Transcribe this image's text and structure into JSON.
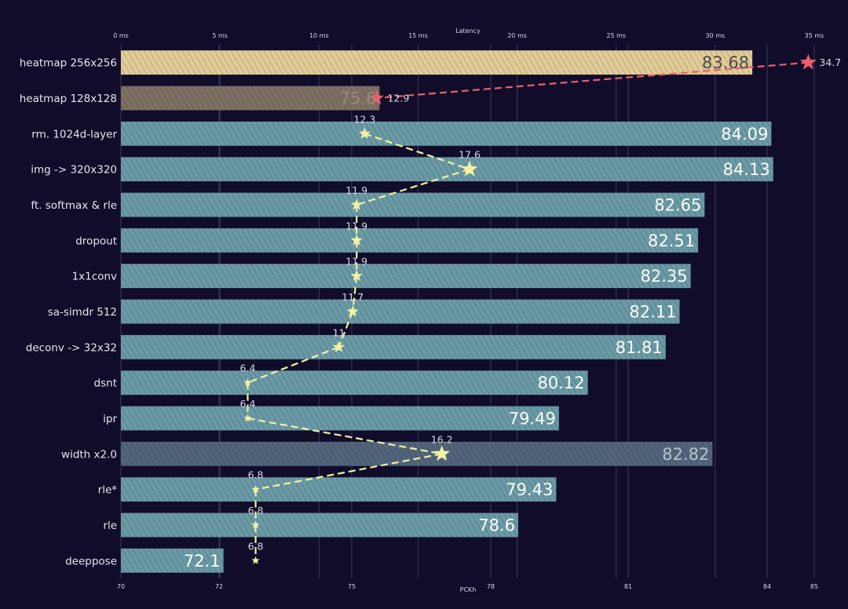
{
  "chart_data": {
    "type": "bar",
    "orientation": "horizontal",
    "categories": [
      "heatmap 256x256",
      "heatmap 128x128",
      "rm. 1024d-layer",
      "img -> 320x320",
      "ft. softmax & rle",
      "dropout",
      "1x1conv",
      "sa-simdr 512",
      "deconv -> 32x32",
      "dsnt",
      "ipr",
      "width x2.0",
      "rle*",
      "rle",
      "deeppose"
    ],
    "series": [
      {
        "type": "bar",
        "values": [
          83.68,
          75.6,
          84.09,
          84.13,
          82.65,
          82.51,
          82.35,
          82.11,
          81.81,
          80.12,
          79.49,
          82.82,
          79.43,
          78.6,
          72.1
        ]
      },
      {
        "type": "line",
        "values": [
          34.7,
          12.9,
          12.3,
          17.6,
          11.9,
          11.9,
          11.9,
          11.7,
          11,
          6.4,
          6.4,
          16.2,
          6.8,
          6.8,
          6.8
        ]
      }
    ],
    "xlabel": "PCKh",
    "x2label": "Latency",
    "xlim": [
      70,
      85
    ],
    "xticks": [
      70,
      72,
      75,
      78,
      81,
      84,
      85
    ],
    "x2lim": [
      0,
      35
    ],
    "x2ticks": [
      "0 ms",
      "5 ms",
      "10 ms",
      "15 ms",
      "20 ms",
      "25 ms",
      "30 ms",
      "35 ms"
    ],
    "grid": true,
    "legend": "none",
    "colors": {
      "background": "#100c2a",
      "bar": "#6a9aa6",
      "bar_highlight_1": "#e2cc98",
      "bar_highlight_2": "#7f7064",
      "bar_highlight_3": "#52657c",
      "line_main": "#f3f1a2",
      "line_highlight": "#ec5f6a",
      "grid": "#3b3a5c"
    }
  }
}
